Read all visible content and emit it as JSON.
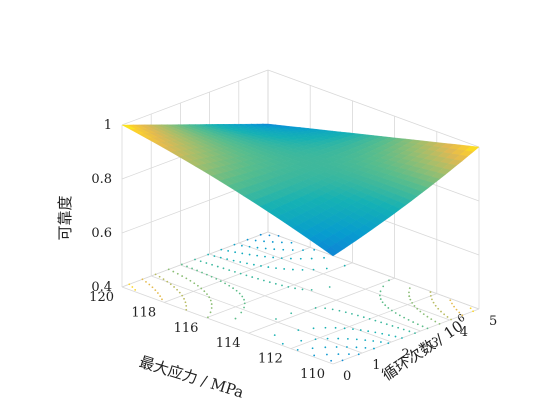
{
  "chart_data": {
    "type": "surface",
    "title": "",
    "xlabel": "最大应力 / MPa",
    "ylabel": "循环次数 / 10",
    "ylabel_exponent": "6",
    "zlabel": "可靠度",
    "x_ticks": [
      "120",
      "118",
      "116",
      "114",
      "112",
      "110"
    ],
    "y_ticks": [
      "0",
      "1",
      "2",
      "3",
      "4",
      "5"
    ],
    "z_ticks": [
      "0.4",
      "0.6",
      "0.8",
      "1"
    ],
    "xlim": [
      110,
      120
    ],
    "ylim": [
      0,
      5
    ],
    "zlim": [
      0.4,
      1.0
    ],
    "colormap": "parula",
    "contour_projection": true,
    "grid": true,
    "surface": {
      "description": "reliability vs stress and cycles",
      "x": [
        110,
        112,
        114,
        116,
        118,
        120
      ],
      "y": [
        0,
        1,
        2,
        3,
        4,
        5
      ],
      "corner_values": {
        "x120_y0": 1.0,
        "x110_y0": 0.8,
        "x120_y5": 0.8,
        "x110_y5": 1.0
      }
    }
  }
}
